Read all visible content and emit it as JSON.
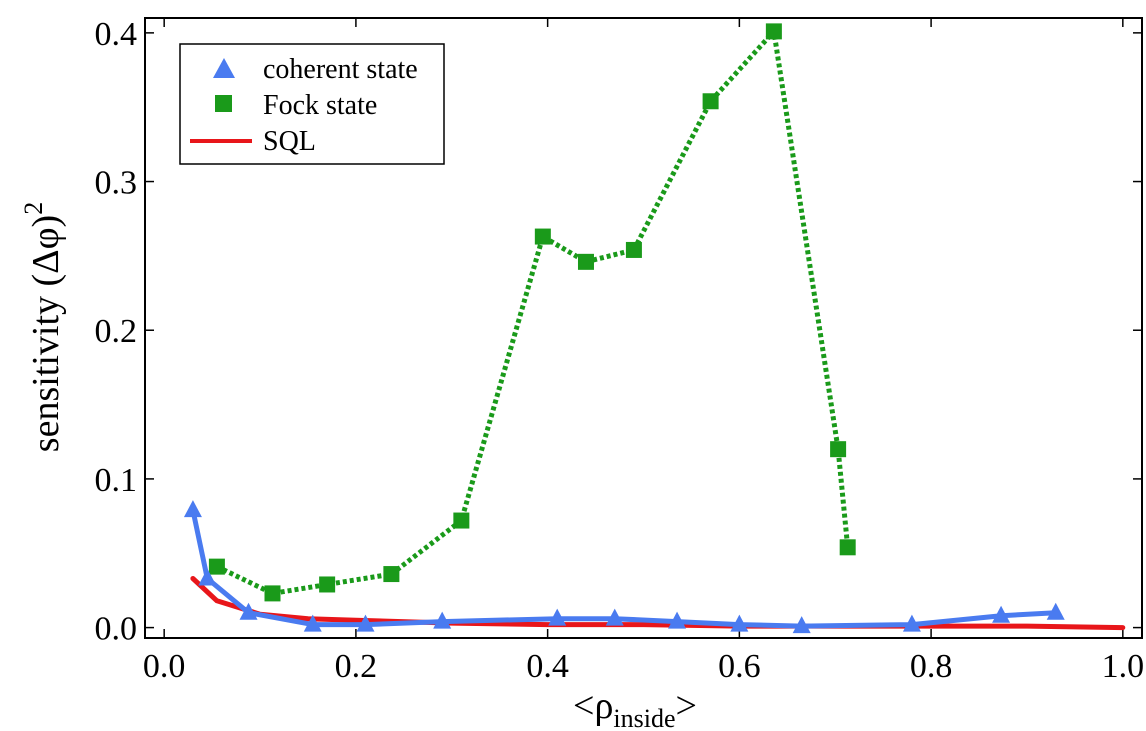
{
  "chart_data": {
    "type": "line",
    "title": "",
    "xlabel": "<ρ",
    "xlabel_sub": "inside",
    "xlabel_close": ">",
    "ylabel": "sensitivity (Δφ)",
    "ylabel_sup": "2",
    "xlim": [
      -0.02,
      1.02
    ],
    "ylim": [
      -0.007,
      0.41
    ],
    "xticks": [
      0.0,
      0.2,
      0.4,
      0.6,
      0.8,
      1.0
    ],
    "xtick_labels": [
      "0.0",
      "0.2",
      "0.4",
      "0.6",
      "0.8",
      "1.0"
    ],
    "yticks": [
      0.0,
      0.1,
      0.2,
      0.3,
      0.4
    ],
    "ytick_labels": [
      "0.0",
      "0.1",
      "0.2",
      "0.3",
      "0.4"
    ],
    "grid": false,
    "legend_position": "top-left",
    "series": [
      {
        "name": "coherent state",
        "color": "#4a7bf0",
        "marker": "triangle",
        "line": "solid",
        "x": [
          0.03,
          0.045,
          0.088,
          0.155,
          0.21,
          0.29,
          0.41,
          0.47,
          0.535,
          0.6,
          0.665,
          0.78,
          0.873,
          0.93
        ],
        "y": [
          0.079,
          0.033,
          0.01,
          0.002,
          0.002,
          0.004,
          0.006,
          0.006,
          0.004,
          0.002,
          0.001,
          0.002,
          0.008,
          0.01
        ]
      },
      {
        "name": "Fock state",
        "color": "#1a9a1a",
        "marker": "square",
        "line": "dotted",
        "x": [
          0.055,
          0.113,
          0.17,
          0.237,
          0.31,
          0.395,
          0.44,
          0.49,
          0.57,
          0.636,
          0.703,
          0.713
        ],
        "y": [
          0.041,
          0.023,
          0.029,
          0.036,
          0.072,
          0.263,
          0.246,
          0.254,
          0.354,
          0.401,
          0.12,
          0.054
        ]
      },
      {
        "name": "SQL",
        "color": "#e8161a",
        "marker": "none",
        "line": "solid",
        "x": [
          0.03,
          0.055,
          0.1,
          0.15,
          0.2,
          0.3,
          0.4,
          0.5,
          0.6,
          0.7,
          0.8,
          0.9,
          1.0
        ],
        "y": [
          0.033,
          0.018,
          0.009,
          0.006,
          0.005,
          0.003,
          0.002,
          0.002,
          0.001,
          0.001,
          0.001,
          0.001,
          0.0
        ]
      }
    ]
  }
}
